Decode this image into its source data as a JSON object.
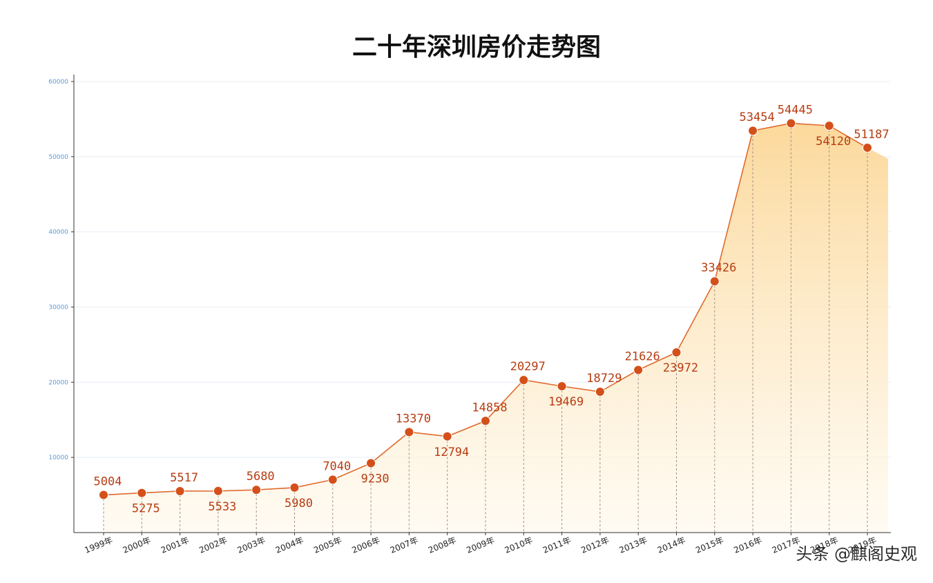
{
  "chart_data": {
    "type": "area",
    "title": "二十年深圳房价走势图",
    "xlabel": "",
    "ylabel": "",
    "ylim": [
      0,
      60000
    ],
    "y_ticks": [
      10000,
      20000,
      30000,
      40000,
      50000,
      60000
    ],
    "grid": true,
    "legend": "none",
    "categories": [
      "1999年",
      "2000年",
      "2001年",
      "2002年",
      "2003年",
      "2004年",
      "2005年",
      "2006年",
      "2007年",
      "2008年",
      "2009年",
      "2010年",
      "2011年",
      "2012年",
      "2013年",
      "2014年",
      "2015年",
      "2016年",
      "2017年",
      "2018年",
      "2019年"
    ],
    "values": [
      5004,
      5275,
      5517,
      5533,
      5680,
      5980,
      7040,
      9230,
      13370,
      12794,
      14858,
      20297,
      19469,
      18729,
      21626,
      23972,
      33426,
      53454,
      54445,
      54120,
      51187
    ],
    "labels_above": [
      true,
      false,
      true,
      false,
      true,
      false,
      true,
      false,
      true,
      false,
      true,
      true,
      false,
      true,
      true,
      false,
      true,
      true,
      true,
      false,
      true
    ],
    "colors": {
      "line": "#e06a2c",
      "marker": "#d4501a",
      "label": "#b83c12",
      "fill_top": "#fbd28a",
      "fill_bottom": "#fff7e8",
      "grid": "#e8eef4",
      "axis": "#333333"
    }
  },
  "watermark": {
    "credit": "头条 @麒阁史观"
  }
}
